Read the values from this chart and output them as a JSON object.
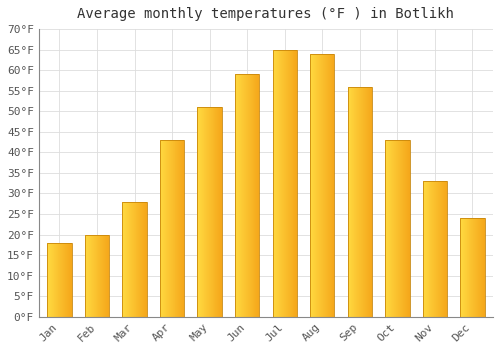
{
  "title": "Average monthly temperatures (°F ) in Botlikh",
  "months": [
    "Jan",
    "Feb",
    "Mar",
    "Apr",
    "May",
    "Jun",
    "Jul",
    "Aug",
    "Sep",
    "Oct",
    "Nov",
    "Dec"
  ],
  "values": [
    18,
    20,
    28,
    43,
    51,
    59,
    65,
    64,
    56,
    43,
    33,
    24
  ],
  "bar_color_left": "#FFD060",
  "bar_color_right": "#F5A000",
  "bar_edge_color": "#C8860A",
  "background_color": "#FFFFFF",
  "grid_color": "#DDDDDD",
  "ylim": [
    0,
    70
  ],
  "yticks": [
    0,
    5,
    10,
    15,
    20,
    25,
    30,
    35,
    40,
    45,
    50,
    55,
    60,
    65,
    70
  ],
  "title_fontsize": 10,
  "tick_fontsize": 8,
  "tick_color": "#555555"
}
